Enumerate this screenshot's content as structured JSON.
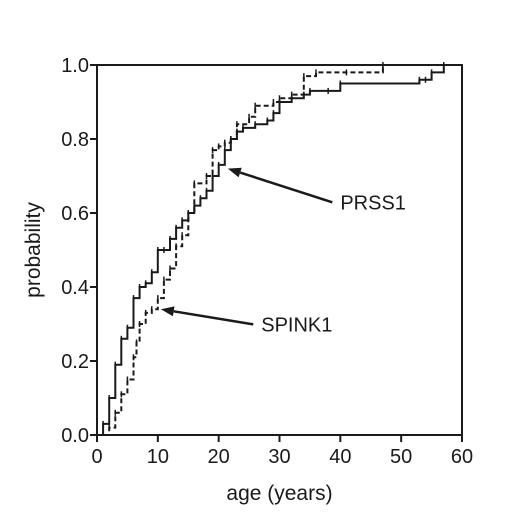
{
  "chart_data": {
    "type": "line",
    "step": true,
    "title": "",
    "xlabel": "age (years)",
    "ylabel": "probability",
    "xlim": [
      0,
      60
    ],
    "ylim": [
      0,
      1
    ],
    "xticks": [
      0,
      10,
      20,
      30,
      40,
      50,
      60
    ],
    "yticks": [
      0.0,
      0.2,
      0.4,
      0.6,
      0.8,
      1.0
    ],
    "xtick_labels": [
      "0",
      "10",
      "20",
      "30",
      "40",
      "50",
      "60"
    ],
    "ytick_labels": [
      "0.0",
      "0.2",
      "0.4",
      "0.6",
      "0.8",
      "1.0"
    ],
    "grid": false,
    "legend": "none",
    "series": [
      {
        "name": "PRSS1",
        "line_style": "solid",
        "color": "#1a1a1a",
        "points": [
          [
            0,
            0.0
          ],
          [
            1,
            0.03
          ],
          [
            2,
            0.1
          ],
          [
            3,
            0.19
          ],
          [
            4,
            0.26
          ],
          [
            5,
            0.29
          ],
          [
            6,
            0.37
          ],
          [
            7,
            0.4
          ],
          [
            8,
            0.41
          ],
          [
            9,
            0.44
          ],
          [
            10,
            0.5
          ],
          [
            11,
            0.5
          ],
          [
            12,
            0.53
          ],
          [
            13,
            0.56
          ],
          [
            14,
            0.58
          ],
          [
            15,
            0.6
          ],
          [
            16,
            0.62
          ],
          [
            17,
            0.64
          ],
          [
            18,
            0.66
          ],
          [
            19,
            0.7
          ],
          [
            20,
            0.73
          ],
          [
            21,
            0.77
          ],
          [
            22,
            0.8
          ],
          [
            23,
            0.82
          ],
          [
            24,
            0.83
          ],
          [
            26,
            0.84
          ],
          [
            28,
            0.85
          ],
          [
            29,
            0.87
          ],
          [
            30,
            0.9
          ],
          [
            32,
            0.91
          ],
          [
            34,
            0.92
          ],
          [
            35,
            0.93
          ],
          [
            38,
            0.93
          ],
          [
            40,
            0.95
          ],
          [
            53,
            0.96
          ],
          [
            54,
            0.96
          ],
          [
            55,
            0.98
          ],
          [
            57,
            0.99
          ],
          [
            57,
            1.0
          ]
        ]
      },
      {
        "name": "SPINK1",
        "line_style": "dashed",
        "color": "#1a1a1a",
        "points": [
          [
            0,
            0.0
          ],
          [
            2,
            0.02
          ],
          [
            3,
            0.06
          ],
          [
            4,
            0.11
          ],
          [
            5,
            0.15
          ],
          [
            6,
            0.21
          ],
          [
            6.5,
            0.25
          ],
          [
            7,
            0.3
          ],
          [
            8,
            0.33
          ],
          [
            9,
            0.34
          ],
          [
            10,
            0.37
          ],
          [
            11,
            0.42
          ],
          [
            12,
            0.45
          ],
          [
            13,
            0.51
          ],
          [
            14,
            0.54
          ],
          [
            15,
            0.6
          ],
          [
            16,
            0.68
          ],
          [
            18,
            0.7
          ],
          [
            19,
            0.77
          ],
          [
            20,
            0.78
          ],
          [
            21,
            0.79
          ],
          [
            22,
            0.8
          ],
          [
            23,
            0.84
          ],
          [
            25,
            0.86
          ],
          [
            26,
            0.89
          ],
          [
            29,
            0.9
          ],
          [
            30,
            0.91
          ],
          [
            32,
            0.92
          ],
          [
            34,
            0.97
          ],
          [
            36,
            0.98
          ],
          [
            41,
            0.98
          ],
          [
            47,
            0.99
          ],
          [
            47,
            1.0
          ]
        ]
      }
    ],
    "annotations": [
      {
        "text": "PRSS1",
        "arrow_to": [
          21.5,
          0.72
        ],
        "text_at": [
          40,
          0.61
        ]
      },
      {
        "text": "SPINK1",
        "arrow_to": [
          10.5,
          0.34
        ],
        "text_at": [
          27,
          0.28
        ]
      }
    ]
  }
}
